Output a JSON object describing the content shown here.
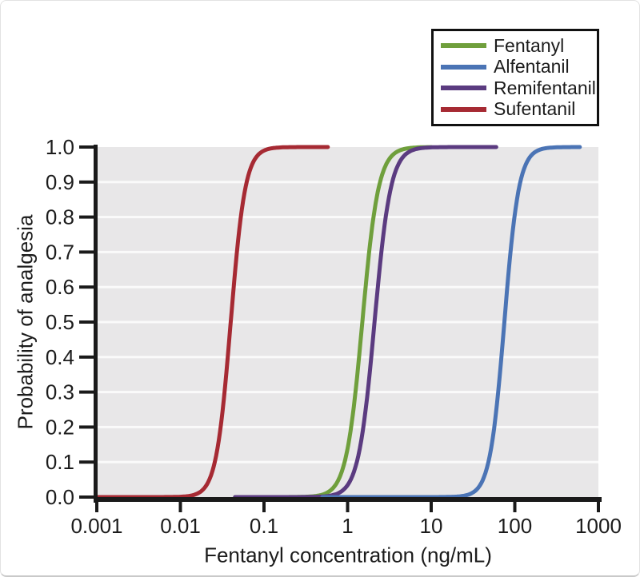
{
  "chart_data": {
    "type": "line",
    "title": "",
    "x_label": "Fentanyl concentration (ng/mL)",
    "y_label": "Probability of analgesia",
    "x_scale": "log",
    "x_range": [
      0.001,
      1000
    ],
    "y_range": [
      0.0,
      1.0
    ],
    "x_ticks": [
      {
        "value": 0.001,
        "label": "0.001"
      },
      {
        "value": 0.01,
        "label": "0.01"
      },
      {
        "value": 0.1,
        "label": "0.1"
      },
      {
        "value": 1,
        "label": "1"
      },
      {
        "value": 10,
        "label": "10"
      },
      {
        "value": 100,
        "label": "100"
      },
      {
        "value": 1000,
        "label": "1000"
      }
    ],
    "y_ticks": [
      {
        "value": 0.0,
        "label": "0.0"
      },
      {
        "value": 0.1,
        "label": "0.1"
      },
      {
        "value": 0.2,
        "label": "0.2"
      },
      {
        "value": 0.3,
        "label": "0.3"
      },
      {
        "value": 0.4,
        "label": "0.4"
      },
      {
        "value": 0.5,
        "label": "0.5"
      },
      {
        "value": 0.6,
        "label": "0.6"
      },
      {
        "value": 0.7,
        "label": "0.7"
      },
      {
        "value": 0.8,
        "label": "0.8"
      },
      {
        "value": 0.9,
        "label": "0.9"
      },
      {
        "value": 1.0,
        "label": "1.0"
      }
    ],
    "grid": "horizontal white gridlines at 0.1 intervals on gray panel",
    "panel_bg": "#e8e7e8",
    "grid_color": "#fafafa",
    "axis_color": "#1a1a1a",
    "curve_model": "p = c^gamma / (c^gamma + EC50^gamma), sigmoid Emax on log concentration axis",
    "series": [
      {
        "name": "Fentanyl",
        "color": "#6f9f3c",
        "ec50_ng_ml": 1.5,
        "hill_slope": 4.5,
        "draw_range": [
          0.045,
          10
        ],
        "z": 1
      },
      {
        "name": "Alfentanil",
        "color": "#4b74b5",
        "ec50_ng_ml": 75,
        "hill_slope": 5.0,
        "draw_range": [
          0.5,
          600
        ],
        "z": 3
      },
      {
        "name": "Remifentanil",
        "color": "#5b3b80",
        "ec50_ng_ml": 2.1,
        "hill_slope": 4.5,
        "draw_range": [
          0.045,
          60
        ],
        "z": 2
      },
      {
        "name": "Sufentanil",
        "color": "#a62a33",
        "ec50_ng_ml": 0.04,
        "hill_slope": 5.0,
        "draw_range": [
          0.001,
          0.58
        ],
        "z": 4
      }
    ],
    "legend_position": "top-right"
  }
}
